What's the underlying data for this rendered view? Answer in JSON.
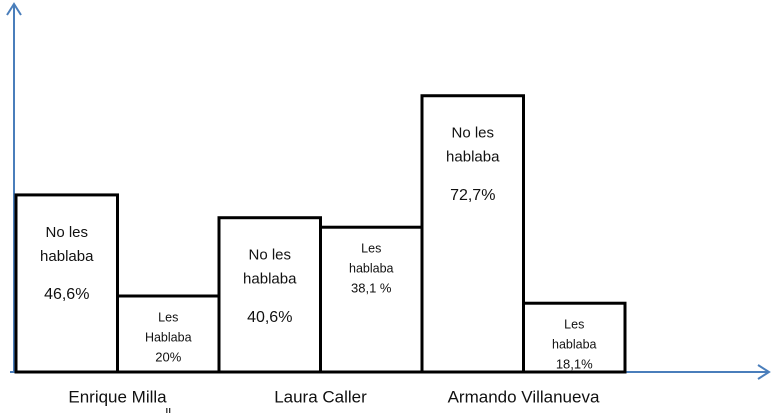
{
  "chart_data": {
    "type": "bar",
    "categories": [
      "Enrique Milla",
      "Laura Caller",
      "Armando Villanueva"
    ],
    "series": [
      {
        "name": "No les hablaba",
        "color": "#ffffff",
        "labels": [
          [
            "No les",
            "hablaba"
          ],
          [
            "No les",
            "hablaba"
          ],
          [
            "No les",
            "hablaba"
          ]
        ],
        "values": [
          46.6,
          40.6,
          72.7
        ],
        "value_labels": [
          "46,6%",
          "40,6%",
          "72,7%"
        ]
      },
      {
        "name": "Les hablaba",
        "color": "#ffffff",
        "labels": [
          [
            "Les",
            "Hablaba"
          ],
          [
            "Les",
            "hablaba"
          ],
          [
            "Les",
            "hablaba"
          ]
        ],
        "values": [
          20,
          38.1,
          18.1
        ],
        "value_labels": [
          "20%",
          "38,1 %",
          "18,1%"
        ]
      }
    ],
    "annotation": "ll",
    "axis_color": "#4a7ebb"
  }
}
